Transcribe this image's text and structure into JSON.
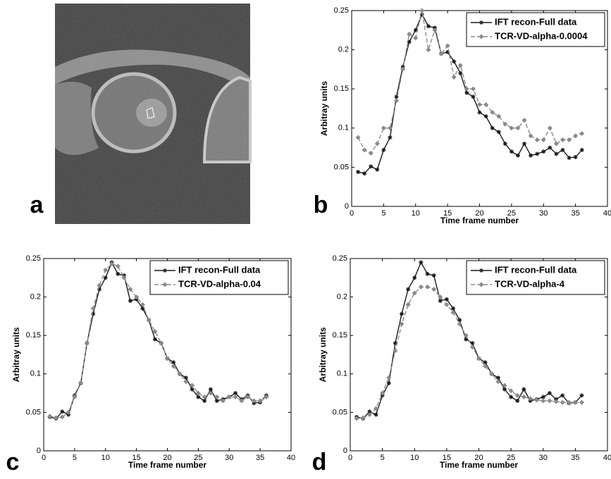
{
  "image_panel": {
    "label": "a"
  },
  "chart_data": [
    {
      "type": "line",
      "panel_label": "b",
      "xlabel": "Time frame number",
      "ylabel": "Arbitray units",
      "x": [
        1,
        2,
        3,
        4,
        5,
        6,
        7,
        8,
        9,
        10,
        11,
        12,
        13,
        14,
        15,
        16,
        17,
        18,
        19,
        20,
        21,
        22,
        23,
        24,
        25,
        26,
        27,
        28,
        29,
        30,
        31,
        32,
        33,
        34,
        35,
        36
      ],
      "xlim": [
        0,
        40
      ],
      "xticks": [
        0,
        5,
        10,
        15,
        20,
        25,
        30,
        35,
        40
      ],
      "ylim": [
        0,
        0.25
      ],
      "yticks": [
        0,
        0.05,
        0.1,
        0.15,
        0.2,
        0.25
      ],
      "series": [
        {
          "name": "IFT recon-Full data",
          "color": "#1a1a1a",
          "values": [
            0.044,
            0.042,
            0.051,
            0.047,
            0.072,
            0.088,
            0.14,
            0.178,
            0.21,
            0.225,
            0.245,
            0.23,
            0.228,
            0.195,
            0.197,
            0.185,
            0.17,
            0.145,
            0.14,
            0.12,
            0.115,
            0.1,
            0.095,
            0.08,
            0.07,
            0.065,
            0.08,
            0.065,
            0.067,
            0.07,
            0.075,
            0.067,
            0.072,
            0.062,
            0.063,
            0.072
          ]
        },
        {
          "name": "TCR-VD-alpha-0.0004",
          "color": "#8a8a8a",
          "values": [
            0.088,
            0.072,
            0.068,
            0.08,
            0.1,
            0.1,
            0.135,
            0.175,
            0.22,
            0.215,
            0.25,
            0.2,
            0.225,
            0.195,
            0.205,
            0.165,
            0.18,
            0.15,
            0.15,
            0.13,
            0.13,
            0.12,
            0.115,
            0.105,
            0.1,
            0.1,
            0.11,
            0.09,
            0.085,
            0.085,
            0.1,
            0.08,
            0.085,
            0.085,
            0.09,
            0.093
          ]
        }
      ]
    },
    {
      "type": "line",
      "panel_label": "c",
      "xlabel": "Time frame number",
      "ylabel": "Arbitray units",
      "x": [
        1,
        2,
        3,
        4,
        5,
        6,
        7,
        8,
        9,
        10,
        11,
        12,
        13,
        14,
        15,
        16,
        17,
        18,
        19,
        20,
        21,
        22,
        23,
        24,
        25,
        26,
        27,
        28,
        29,
        30,
        31,
        32,
        33,
        34,
        35,
        36
      ],
      "xlim": [
        0,
        40
      ],
      "xticks": [
        0,
        5,
        10,
        15,
        20,
        25,
        30,
        35,
        40
      ],
      "ylim": [
        0,
        0.25
      ],
      "yticks": [
        0,
        0.05,
        0.1,
        0.15,
        0.2,
        0.25
      ],
      "series": [
        {
          "name": "IFT recon-Full data",
          "color": "#1a1a1a",
          "values": [
            0.044,
            0.042,
            0.051,
            0.047,
            0.072,
            0.088,
            0.14,
            0.178,
            0.21,
            0.225,
            0.245,
            0.23,
            0.228,
            0.195,
            0.197,
            0.185,
            0.17,
            0.145,
            0.14,
            0.12,
            0.115,
            0.1,
            0.095,
            0.08,
            0.07,
            0.065,
            0.08,
            0.065,
            0.067,
            0.07,
            0.075,
            0.067,
            0.072,
            0.062,
            0.063,
            0.072
          ]
        },
        {
          "name": "TCR-VD-alpha-0.04",
          "color": "#8a8a8a",
          "values": [
            0.045,
            0.043,
            0.044,
            0.05,
            0.07,
            0.088,
            0.14,
            0.185,
            0.215,
            0.235,
            0.243,
            0.24,
            0.225,
            0.21,
            0.2,
            0.19,
            0.17,
            0.155,
            0.14,
            0.12,
            0.11,
            0.1,
            0.09,
            0.085,
            0.075,
            0.07,
            0.075,
            0.07,
            0.065,
            0.07,
            0.07,
            0.065,
            0.07,
            0.065,
            0.065,
            0.07
          ]
        }
      ]
    },
    {
      "type": "line",
      "panel_label": "d",
      "xlabel": "Time frame number",
      "ylabel": "Arbitray units",
      "x": [
        1,
        2,
        3,
        4,
        5,
        6,
        7,
        8,
        9,
        10,
        11,
        12,
        13,
        14,
        15,
        16,
        17,
        18,
        19,
        20,
        21,
        22,
        23,
        24,
        25,
        26,
        27,
        28,
        29,
        30,
        31,
        32,
        33,
        34,
        35,
        36
      ],
      "xlim": [
        0,
        40
      ],
      "xticks": [
        0,
        5,
        10,
        15,
        20,
        25,
        30,
        35,
        40
      ],
      "ylim": [
        0,
        0.25
      ],
      "yticks": [
        0,
        0.05,
        0.1,
        0.15,
        0.2,
        0.25
      ],
      "series": [
        {
          "name": "IFT recon-Full data",
          "color": "#1a1a1a",
          "values": [
            0.044,
            0.042,
            0.051,
            0.047,
            0.072,
            0.088,
            0.14,
            0.178,
            0.21,
            0.225,
            0.245,
            0.23,
            0.228,
            0.195,
            0.197,
            0.185,
            0.17,
            0.145,
            0.14,
            0.12,
            0.115,
            0.1,
            0.095,
            0.08,
            0.07,
            0.065,
            0.08,
            0.065,
            0.067,
            0.07,
            0.075,
            0.067,
            0.072,
            0.062,
            0.063,
            0.072
          ]
        },
        {
          "name": "TCR-VD-alpha-4",
          "color": "#8a8a8a",
          "values": [
            0.042,
            0.043,
            0.047,
            0.055,
            0.075,
            0.095,
            0.13,
            0.165,
            0.19,
            0.205,
            0.213,
            0.213,
            0.21,
            0.2,
            0.19,
            0.18,
            0.165,
            0.15,
            0.135,
            0.12,
            0.11,
            0.1,
            0.09,
            0.085,
            0.078,
            0.072,
            0.07,
            0.068,
            0.066,
            0.065,
            0.065,
            0.064,
            0.063,
            0.063,
            0.063,
            0.063
          ]
        }
      ]
    }
  ]
}
